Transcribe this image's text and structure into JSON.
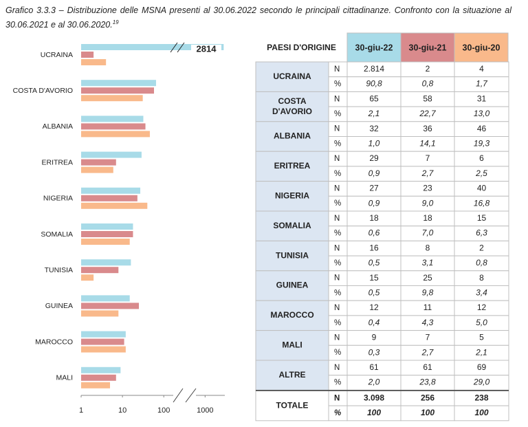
{
  "caption": {
    "text": "Grafico 3.3.3 – Distribuzione delle MSNA presenti al 30.06.2022 secondo le principali cittadinanze. Confronto con la situazione al 30.06.2021 e al 30.06.2020.",
    "footnote": "19"
  },
  "chart_data": {
    "type": "bar",
    "orientation": "horizontal",
    "categories": [
      "UCRAINA",
      "COSTA D'AVORIO",
      "ALBANIA",
      "ERITREA",
      "NIGERIA",
      "SOMALIA",
      "TUNISIA",
      "GUINEA",
      "MAROCCO",
      "MALI"
    ],
    "series": [
      {
        "name": "30-giu-22",
        "color": "#a8dbe8",
        "values": [
          2814,
          65,
          32,
          29,
          27,
          18,
          16,
          15,
          12,
          9
        ]
      },
      {
        "name": "30-giu-21",
        "color": "#d98a8c",
        "values": [
          2,
          58,
          36,
          7,
          23,
          18,
          8,
          25,
          11,
          7
        ]
      },
      {
        "name": "30-giu-20",
        "color": "#f9b98b",
        "values": [
          4,
          31,
          46,
          6,
          40,
          15,
          2,
          8,
          12,
          5
        ]
      }
    ],
    "xscale": "log",
    "xlim": [
      1,
      3000
    ],
    "xticks": [
      1,
      10,
      100,
      1000
    ]
  },
  "table": {
    "header": "PAESI D'ORIGINE",
    "row_labels": [
      "N",
      "%"
    ],
    "rows": [
      {
        "country": "UCRAINA",
        "n": [
          "2.814",
          "2",
          "4"
        ],
        "pct": [
          "90,8",
          "0,8",
          "1,7"
        ]
      },
      {
        "country": "COSTA D'AVORIO",
        "n": [
          "65",
          "58",
          "31"
        ],
        "pct": [
          "2,1",
          "22,7",
          "13,0"
        ]
      },
      {
        "country": "ALBANIA",
        "n": [
          "32",
          "36",
          "46"
        ],
        "pct": [
          "1,0",
          "14,1",
          "19,3"
        ]
      },
      {
        "country": "ERITREA",
        "n": [
          "29",
          "7",
          "6"
        ],
        "pct": [
          "0,9",
          "2,7",
          "2,5"
        ]
      },
      {
        "country": "NIGERIA",
        "n": [
          "27",
          "23",
          "40"
        ],
        "pct": [
          "0,9",
          "9,0",
          "16,8"
        ]
      },
      {
        "country": "SOMALIA",
        "n": [
          "18",
          "18",
          "15"
        ],
        "pct": [
          "0,6",
          "7,0",
          "6,3"
        ]
      },
      {
        "country": "TUNISIA",
        "n": [
          "16",
          "8",
          "2"
        ],
        "pct": [
          "0,5",
          "3,1",
          "0,8"
        ]
      },
      {
        "country": "GUINEA",
        "n": [
          "15",
          "25",
          "8"
        ],
        "pct": [
          "0,5",
          "9,8",
          "3,4"
        ]
      },
      {
        "country": "MAROCCO",
        "n": [
          "12",
          "11",
          "12"
        ],
        "pct": [
          "0,4",
          "4,3",
          "5,0"
        ]
      },
      {
        "country": "MALI",
        "n": [
          "9",
          "7",
          "5"
        ],
        "pct": [
          "0,3",
          "2,7",
          "2,1"
        ]
      },
      {
        "country": "ALTRE",
        "n": [
          "61",
          "61",
          "69"
        ],
        "pct": [
          "2,0",
          "23,8",
          "29,0"
        ]
      }
    ],
    "total": {
      "country": "TOTALE",
      "n": [
        "3.098",
        "256",
        "238"
      ],
      "pct": [
        "100",
        "100",
        "100"
      ]
    }
  }
}
